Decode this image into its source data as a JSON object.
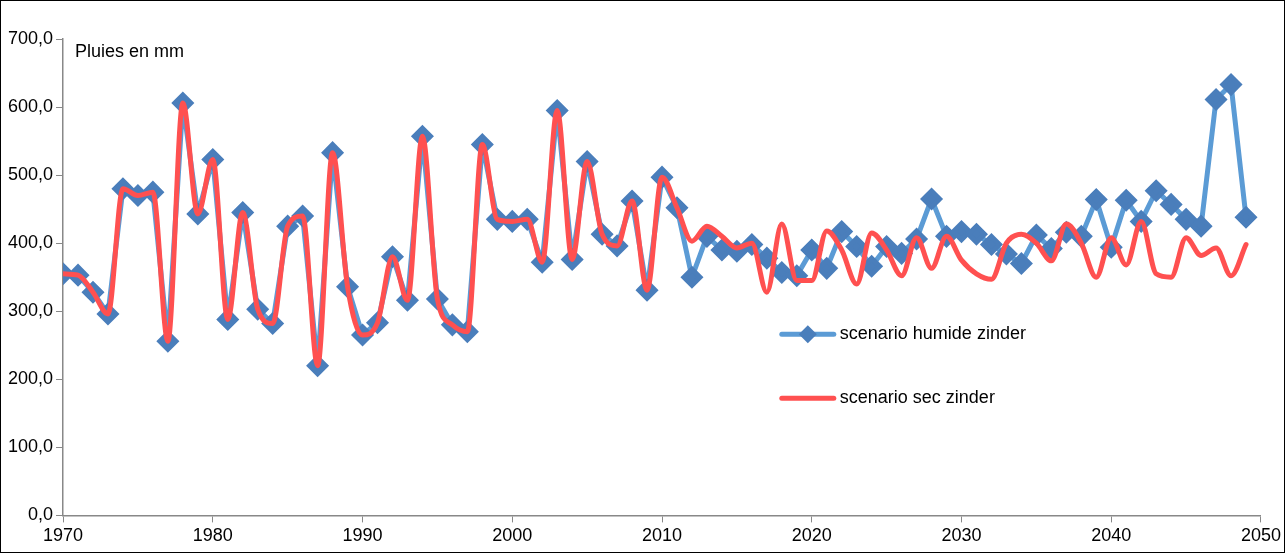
{
  "chart_data": {
    "type": "line",
    "ylabel": "Pluies en mm",
    "x": [
      1970,
      1971,
      1972,
      1973,
      1974,
      1975,
      1976,
      1977,
      1978,
      1979,
      1980,
      1981,
      1982,
      1983,
      1984,
      1985,
      1986,
      1987,
      1988,
      1989,
      1990,
      1991,
      1992,
      1993,
      1994,
      1995,
      1996,
      1997,
      1998,
      1999,
      2000,
      2001,
      2002,
      2003,
      2004,
      2005,
      2006,
      2007,
      2008,
      2009,
      2010,
      2011,
      2012,
      2013,
      2014,
      2015,
      2016,
      2017,
      2018,
      2019,
      2020,
      2021,
      2022,
      2023,
      2024,
      2025,
      2026,
      2027,
      2028,
      2029,
      2030,
      2031,
      2032,
      2033,
      2034,
      2035,
      2036,
      2037,
      2038,
      2039,
      2040,
      2041,
      2042,
      2043,
      2044,
      2045,
      2046,
      2047,
      2048,
      2049
    ],
    "series": [
      {
        "name": "scenario humide zinder",
        "color": "#5b9bd5",
        "marker": "diamond",
        "values": [
          355,
          353,
          328,
          296,
          480,
          470,
          475,
          256,
          606,
          443,
          523,
          288,
          445,
          303,
          282,
          425,
          440,
          220,
          533,
          336,
          265,
          283,
          380,
          316,
          557,
          318,
          280,
          270,
          545,
          435,
          432,
          435,
          372,
          595,
          376,
          520,
          413,
          396,
          462,
          331,
          497,
          452,
          350,
          410,
          390,
          388,
          398,
          378,
          357,
          352,
          390,
          363,
          417,
          395,
          366,
          395,
          385,
          406,
          465,
          410,
          417,
          413,
          398,
          384,
          370,
          412,
          392,
          416,
          410,
          464,
          394,
          463,
          432,
          477,
          457,
          435,
          425,
          611,
          633,
          438
        ]
      },
      {
        "name": "scenario sec zinder",
        "color": "#ff5050",
        "marker": "none",
        "values": [
          355,
          353,
          328,
          296,
          480,
          470,
          475,
          256,
          606,
          443,
          523,
          288,
          445,
          303,
          282,
          425,
          440,
          220,
          533,
          336,
          265,
          283,
          380,
          316,
          557,
          318,
          280,
          270,
          545,
          435,
          432,
          435,
          372,
          595,
          376,
          520,
          413,
          396,
          462,
          331,
          497,
          452,
          403,
          425,
          410,
          393,
          400,
          328,
          428,
          345,
          345,
          418,
          390,
          340,
          415,
          390,
          352,
          408,
          363,
          410,
          375,
          355,
          347,
          400,
          413,
          400,
          374,
          428,
          400,
          350,
          408,
          368,
          432,
          355,
          350,
          408,
          382,
          393,
          352,
          398
        ]
      }
    ],
    "xlim": [
      1970,
      2050
    ],
    "xticks": [
      1970,
      1980,
      1990,
      2000,
      2010,
      2020,
      2030,
      2040,
      2050
    ],
    "ylim": [
      0,
      700
    ],
    "yticks": [
      {
        "value": 0,
        "label": "0,0"
      },
      {
        "value": 100,
        "label": "100,0"
      },
      {
        "value": 200,
        "label": "200,0"
      },
      {
        "value": 300,
        "label": "300,0"
      },
      {
        "value": 400,
        "label": "400,0"
      },
      {
        "value": 500,
        "label": "500,0"
      },
      {
        "value": 600,
        "label": "600,0"
      },
      {
        "value": 700,
        "label": "700,0"
      }
    ],
    "grid": false,
    "legend": "right",
    "line_style": "solid"
  }
}
